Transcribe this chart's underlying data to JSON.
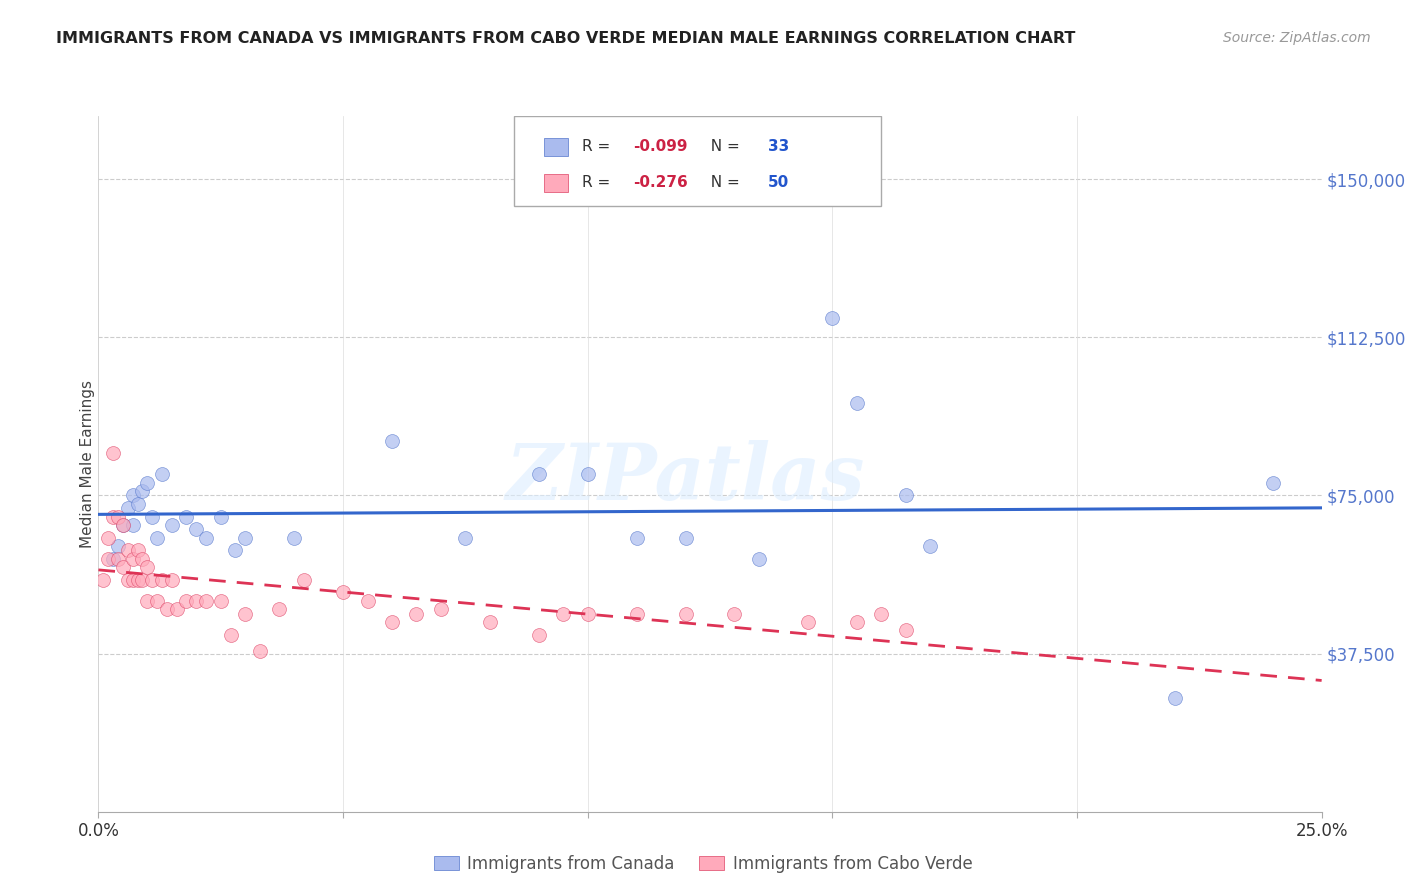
{
  "title": "IMMIGRANTS FROM CANADA VS IMMIGRANTS FROM CABO VERDE MEDIAN MALE EARNINGS CORRELATION CHART",
  "source": "Source: ZipAtlas.com",
  "ylabel": "Median Male Earnings",
  "ytick_labels": [
    "$150,000",
    "$112,500",
    "$75,000",
    "$37,500"
  ],
  "ytick_values": [
    150000,
    112500,
    75000,
    37500
  ],
  "ymin": 0,
  "ymax": 165000,
  "xmin": 0.0,
  "xmax": 0.25,
  "canada_R": -0.099,
  "canada_N": 33,
  "caboverde_R": -0.276,
  "caboverde_N": 50,
  "canada_color": "#aabbee",
  "caboverde_color": "#ffaabb",
  "canada_edge_color": "#5577cc",
  "caboverde_edge_color": "#dd4466",
  "trend_canada_color": "#3366cc",
  "trend_caboverde_color": "#dd3355",
  "watermark": "ZIPatlas",
  "legend_labels": [
    "Immigrants from Canada",
    "Immigrants from Cabo Verde"
  ],
  "xtick_values": [
    0.0,
    0.05,
    0.1,
    0.15,
    0.2,
    0.25
  ],
  "xtick_labels": [
    "0.0%",
    "",
    "",
    "",
    "",
    "25.0%"
  ],
  "canada_x": [
    0.003,
    0.004,
    0.005,
    0.006,
    0.007,
    0.007,
    0.008,
    0.009,
    0.01,
    0.011,
    0.012,
    0.013,
    0.015,
    0.018,
    0.02,
    0.022,
    0.025,
    0.028,
    0.03,
    0.04,
    0.06,
    0.075,
    0.09,
    0.1,
    0.11,
    0.12,
    0.135,
    0.15,
    0.155,
    0.165,
    0.17,
    0.22,
    0.24
  ],
  "canada_y": [
    60000,
    63000,
    68000,
    72000,
    75000,
    68000,
    73000,
    76000,
    78000,
    70000,
    65000,
    80000,
    68000,
    70000,
    67000,
    65000,
    70000,
    62000,
    65000,
    65000,
    88000,
    65000,
    80000,
    80000,
    65000,
    65000,
    60000,
    117000,
    97000,
    75000,
    63000,
    27000,
    78000
  ],
  "caboverde_x": [
    0.001,
    0.002,
    0.002,
    0.003,
    0.003,
    0.004,
    0.004,
    0.005,
    0.005,
    0.006,
    0.006,
    0.007,
    0.007,
    0.008,
    0.008,
    0.009,
    0.009,
    0.01,
    0.01,
    0.011,
    0.012,
    0.013,
    0.014,
    0.015,
    0.016,
    0.018,
    0.02,
    0.022,
    0.025,
    0.027,
    0.03,
    0.033,
    0.037,
    0.042,
    0.05,
    0.055,
    0.06,
    0.065,
    0.07,
    0.08,
    0.09,
    0.095,
    0.1,
    0.11,
    0.12,
    0.13,
    0.145,
    0.155,
    0.16,
    0.165
  ],
  "caboverde_y": [
    55000,
    60000,
    65000,
    70000,
    85000,
    60000,
    70000,
    58000,
    68000,
    55000,
    62000,
    55000,
    60000,
    55000,
    62000,
    55000,
    60000,
    50000,
    58000,
    55000,
    50000,
    55000,
    48000,
    55000,
    48000,
    50000,
    50000,
    50000,
    50000,
    42000,
    47000,
    38000,
    48000,
    55000,
    52000,
    50000,
    45000,
    47000,
    48000,
    45000,
    42000,
    47000,
    47000,
    47000,
    47000,
    47000,
    45000,
    45000,
    47000,
    43000
  ]
}
